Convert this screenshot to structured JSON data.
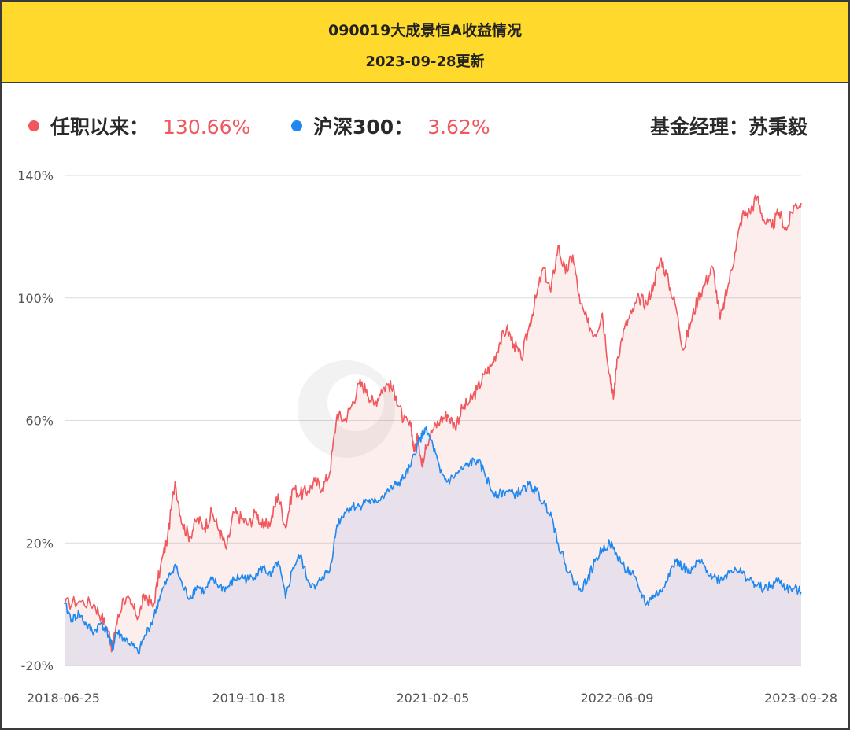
{
  "header": {
    "title": "090019大成景恒A收益情况",
    "subtitle": "2023-09-28更新"
  },
  "legend": {
    "fund_label": "任职以来：",
    "fund_value": "130.66%",
    "index_label": "沪深300：",
    "index_value": "3.62%",
    "manager": "基金经理：苏秉毅"
  },
  "colors": {
    "header_bg": "#ffd92b",
    "fund": "#f0585d",
    "index": "#1e88f0",
    "value_text": "#f0585d"
  },
  "chart_data": {
    "type": "line",
    "yticks": [
      "140%",
      "100%",
      "60%",
      "20%",
      "-20%"
    ],
    "ytick_values": [
      140,
      100,
      60,
      20,
      -20
    ],
    "xticks": [
      "2018-06-25",
      "2019-10-18",
      "2021-02-05",
      "2022-06-09",
      "2023-09-28"
    ],
    "ylim": [
      -20,
      140
    ],
    "x_range": [
      0,
      100
    ],
    "grid": true,
    "series": [
      {
        "name": "任职以来",
        "points": [
          [
            0,
            0
          ],
          [
            2,
            1
          ],
          [
            4,
            0
          ],
          [
            5,
            -4
          ],
          [
            6,
            -9
          ],
          [
            6.5,
            -15
          ],
          [
            7,
            -7
          ],
          [
            8,
            2
          ],
          [
            9,
            0
          ],
          [
            10,
            -4
          ],
          [
            11,
            3
          ],
          [
            12,
            -1
          ],
          [
            13,
            12
          ],
          [
            14,
            22
          ],
          [
            15,
            40
          ],
          [
            16,
            26
          ],
          [
            17,
            22
          ],
          [
            18,
            28
          ],
          [
            19,
            25
          ],
          [
            20,
            30
          ],
          [
            21,
            24
          ],
          [
            22,
            18
          ],
          [
            23,
            30
          ],
          [
            24,
            28
          ],
          [
            25,
            26
          ],
          [
            26,
            30
          ],
          [
            27,
            25
          ],
          [
            28,
            27
          ],
          [
            29,
            36
          ],
          [
            30,
            25
          ],
          [
            31,
            38
          ],
          [
            32,
            36
          ],
          [
            33,
            37
          ],
          [
            34,
            40
          ],
          [
            35,
            38
          ],
          [
            36,
            43
          ],
          [
            37,
            62
          ],
          [
            38,
            60
          ],
          [
            39,
            65
          ],
          [
            40,
            72
          ],
          [
            41,
            70
          ],
          [
            42,
            65
          ],
          [
            43,
            70
          ],
          [
            44,
            72
          ],
          [
            45,
            68
          ],
          [
            46,
            60
          ],
          [
            47,
            58
          ],
          [
            47.5,
            50
          ],
          [
            48,
            55
          ],
          [
            48.5,
            45
          ],
          [
            49,
            52
          ],
          [
            50,
            57
          ],
          [
            51,
            60
          ],
          [
            52,
            62
          ],
          [
            53,
            58
          ],
          [
            54,
            64
          ],
          [
            55,
            66
          ],
          [
            56,
            70
          ],
          [
            57,
            75
          ],
          [
            58,
            78
          ],
          [
            59,
            85
          ],
          [
            60,
            90
          ],
          [
            61,
            85
          ],
          [
            62,
            80
          ],
          [
            63,
            90
          ],
          [
            64,
            100
          ],
          [
            65,
            110
          ],
          [
            66,
            102
          ],
          [
            67,
            117
          ],
          [
            68,
            108
          ],
          [
            69,
            114
          ],
          [
            70,
            98
          ],
          [
            71,
            92
          ],
          [
            72,
            88
          ],
          [
            73,
            95
          ],
          [
            74,
            75
          ],
          [
            74.5,
            67
          ],
          [
            75,
            80
          ],
          [
            76,
            90
          ],
          [
            77,
            95
          ],
          [
            78,
            100
          ],
          [
            79,
            98
          ],
          [
            80,
            105
          ],
          [
            81,
            113
          ],
          [
            82,
            105
          ],
          [
            83,
            97
          ],
          [
            84,
            83
          ],
          [
            85,
            92
          ],
          [
            86,
            100
          ],
          [
            87,
            105
          ],
          [
            88,
            110
          ],
          [
            89,
            93
          ],
          [
            90,
            103
          ],
          [
            91,
            115
          ],
          [
            92,
            127
          ],
          [
            93,
            128
          ],
          [
            94,
            133
          ],
          [
            95,
            125
          ],
          [
            96,
            123
          ],
          [
            97,
            128
          ],
          [
            98,
            122
          ],
          [
            99,
            130
          ],
          [
            100,
            131
          ]
        ]
      },
      {
        "name": "沪深300",
        "points": [
          [
            0,
            0
          ],
          [
            1,
            -5
          ],
          [
            2,
            -3
          ],
          [
            3,
            -7
          ],
          [
            4,
            -9
          ],
          [
            5,
            -6
          ],
          [
            6,
            -10
          ],
          [
            6.5,
            -15
          ],
          [
            7,
            -9
          ],
          [
            8,
            -11
          ],
          [
            9,
            -13
          ],
          [
            10,
            -16
          ],
          [
            11,
            -10
          ],
          [
            12,
            -5
          ],
          [
            13,
            3
          ],
          [
            14,
            8
          ],
          [
            15,
            13
          ],
          [
            16,
            6
          ],
          [
            17,
            2
          ],
          [
            18,
            6
          ],
          [
            19,
            4
          ],
          [
            20,
            8
          ],
          [
            21,
            6
          ],
          [
            22,
            5
          ],
          [
            23,
            8
          ],
          [
            24,
            9
          ],
          [
            25,
            8
          ],
          [
            26,
            10
          ],
          [
            27,
            12
          ],
          [
            28,
            9
          ],
          [
            29,
            14
          ],
          [
            30,
            2
          ],
          [
            31,
            12
          ],
          [
            32,
            16
          ],
          [
            33,
            8
          ],
          [
            34,
            5
          ],
          [
            35,
            9
          ],
          [
            36,
            11
          ],
          [
            37,
            26
          ],
          [
            38,
            30
          ],
          [
            39,
            32
          ],
          [
            40,
            32
          ],
          [
            41,
            34
          ],
          [
            42,
            33
          ],
          [
            43,
            35
          ],
          [
            44,
            37
          ],
          [
            45,
            39
          ],
          [
            46,
            41
          ],
          [
            47,
            45
          ],
          [
            48,
            53
          ],
          [
            48.5,
            55
          ],
          [
            49,
            57
          ],
          [
            50,
            52
          ],
          [
            51,
            43
          ],
          [
            52,
            40
          ],
          [
            53,
            42
          ],
          [
            54,
            44
          ],
          [
            55,
            46
          ],
          [
            56,
            47
          ],
          [
            57,
            43
          ],
          [
            58,
            37
          ],
          [
            59,
            36
          ],
          [
            60,
            37
          ],
          [
            61,
            36
          ],
          [
            62,
            37
          ],
          [
            63,
            39
          ],
          [
            64,
            37
          ],
          [
            65,
            33
          ],
          [
            66,
            30
          ],
          [
            67,
            20
          ],
          [
            68,
            13
          ],
          [
            69,
            8
          ],
          [
            70,
            5
          ],
          [
            71,
            8
          ],
          [
            72,
            14
          ],
          [
            73,
            18
          ],
          [
            74,
            20
          ],
          [
            75,
            16
          ],
          [
            76,
            12
          ],
          [
            77,
            10
          ],
          [
            78,
            5
          ],
          [
            79,
            0
          ],
          [
            80,
            3
          ],
          [
            81,
            4
          ],
          [
            82,
            10
          ],
          [
            83,
            14
          ],
          [
            84,
            12
          ],
          [
            85,
            10
          ],
          [
            86,
            14
          ],
          [
            87,
            12
          ],
          [
            88,
            9
          ],
          [
            89,
            8
          ],
          [
            90,
            10
          ],
          [
            91,
            12
          ],
          [
            92,
            10
          ],
          [
            93,
            8
          ],
          [
            94,
            6
          ],
          [
            95,
            5
          ],
          [
            96,
            6
          ],
          [
            97,
            8
          ],
          [
            98,
            5
          ],
          [
            99,
            5
          ],
          [
            100,
            4
          ]
        ]
      }
    ]
  }
}
